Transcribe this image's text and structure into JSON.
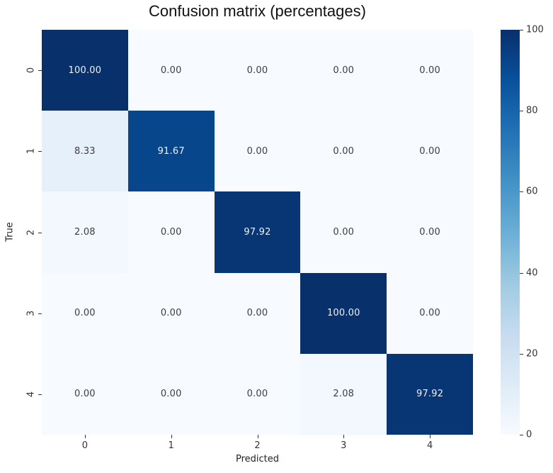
{
  "chart_data": {
    "type": "heatmap",
    "title": "Confusion matrix (percentages)",
    "xlabel": "Predicted",
    "ylabel": "True",
    "x_tick_labels": [
      "0",
      "1",
      "2",
      "3",
      "4"
    ],
    "y_tick_labels": [
      "0",
      "1",
      "2",
      "3",
      "4"
    ],
    "values": [
      [
        100.0,
        0.0,
        0.0,
        0.0,
        0.0
      ],
      [
        8.33,
        91.67,
        0.0,
        0.0,
        0.0
      ],
      [
        2.08,
        0.0,
        97.92,
        0.0,
        0.0
      ],
      [
        0.0,
        0.0,
        0.0,
        100.0,
        0.0
      ],
      [
        0.0,
        0.0,
        0.0,
        2.08,
        97.92
      ]
    ],
    "annotations": [
      [
        "100.00",
        "0.00",
        "0.00",
        "0.00",
        "0.00"
      ],
      [
        "8.33",
        "91.67",
        "0.00",
        "0.00",
        "0.00"
      ],
      [
        "2.08",
        "0.00",
        "97.92",
        "0.00",
        "0.00"
      ],
      [
        "0.00",
        "0.00",
        "0.00",
        "100.00",
        "0.00"
      ],
      [
        "0.00",
        "0.00",
        "0.00",
        "2.08",
        "97.92"
      ]
    ],
    "vmin": 0,
    "vmax": 100,
    "colormap": "Blues",
    "colorbar_ticks": [
      0,
      20,
      40,
      60,
      80,
      100
    ],
    "legend_position": "colorbar-right",
    "grid": false,
    "colors": {
      "cmap_min": "#f7fbff",
      "cmap_max": "#08306b",
      "annot_on_light": "#3d3d3d",
      "annot_on_dark": "#f0f0f0",
      "tick_color": "#333333"
    }
  }
}
